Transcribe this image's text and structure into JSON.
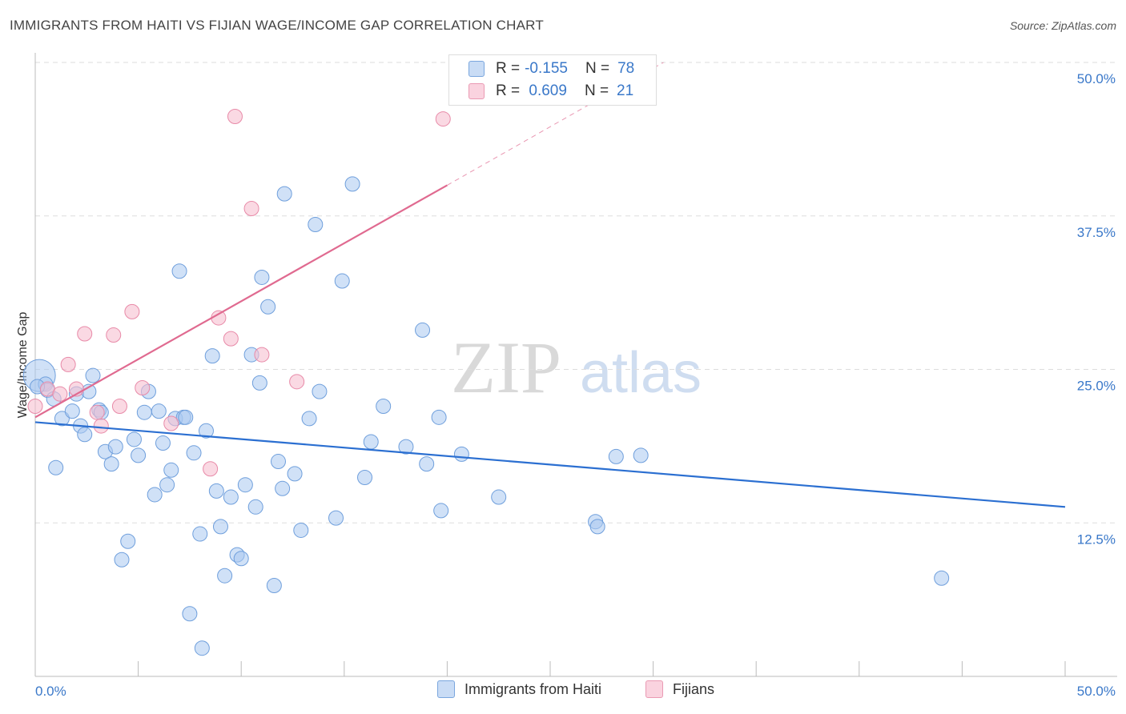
{
  "header": {
    "title": "IMMIGRANTS FROM HAITI VS FIJIAN WAGE/INCOME GAP CORRELATION CHART",
    "source": "Source: ZipAtlas.com"
  },
  "watermark": {
    "zip": "ZIP",
    "atlas": "atlas"
  },
  "legend_top": {
    "rows": [
      {
        "r_label": "R =",
        "r_value": "-0.155",
        "n_label": "N =",
        "n_value": "78",
        "color": "#a9c8f0"
      },
      {
        "r_label": "R =",
        "r_value": " 0.609",
        "n_label": "N =",
        "n_value": "21",
        "color": "#f7b8cb"
      }
    ]
  },
  "legend_bottom": {
    "items": [
      {
        "label": "Immigrants from Haiti",
        "color": "#a9c8f0"
      },
      {
        "label": "Fijians",
        "color": "#f7b8cb"
      }
    ]
  },
  "colors": {
    "blue_fill": "#a9c8f0",
    "blue_stroke": "#6f9fdc",
    "blue_line": "#2b6fd1",
    "pink_fill": "#f7c0d0",
    "pink_stroke": "#e88aa8",
    "pink_line": "#e06a90",
    "tick_label": "#3a78c9",
    "grid": "#dddddd"
  },
  "chart_data": {
    "type": "scatter",
    "title": "IMMIGRANTS FROM HAITI VS FIJIAN WAGE/INCOME GAP CORRELATION CHART",
    "xlabel": "",
    "ylabel": "Wage/Income Gap",
    "xlim": [
      0,
      50
    ],
    "ylim": [
      0,
      50
    ],
    "x_tick_labels": [
      "0.0%",
      "50.0%"
    ],
    "y_tick_labels": [
      {
        "value": 12.5,
        "label": "12.5%"
      },
      {
        "value": 25.0,
        "label": "25.0%"
      },
      {
        "value": 37.5,
        "label": "37.5%"
      },
      {
        "value": 50.0,
        "label": "50.0%"
      }
    ],
    "grid": true,
    "legend_position": "top-center",
    "series": [
      {
        "name": "Immigrants from Haiti",
        "r": -0.155,
        "n": 78,
        "trend": {
          "x": [
            0,
            50
          ],
          "y": [
            20.7,
            13.8
          ]
        },
        "points": [
          [
            0.2,
            24.5
          ],
          [
            0.5,
            23.8
          ],
          [
            0.6,
            23.3
          ],
          [
            0.9,
            22.6
          ],
          [
            1.0,
            17.0
          ],
          [
            1.3,
            21.0
          ],
          [
            1.8,
            21.6
          ],
          [
            2.0,
            23.0
          ],
          [
            2.2,
            20.4
          ],
          [
            2.4,
            19.7
          ],
          [
            2.6,
            23.2
          ],
          [
            2.8,
            24.5
          ],
          [
            3.1,
            21.7
          ],
          [
            3.2,
            21.5
          ],
          [
            3.4,
            18.3
          ],
          [
            3.7,
            17.3
          ],
          [
            3.9,
            18.7
          ],
          [
            4.2,
            9.5
          ],
          [
            4.5,
            11.0
          ],
          [
            4.8,
            19.3
          ],
          [
            5.0,
            18.0
          ],
          [
            5.3,
            21.5
          ],
          [
            5.5,
            23.2
          ],
          [
            5.8,
            14.8
          ],
          [
            6.0,
            21.6
          ],
          [
            6.2,
            19.0
          ],
          [
            6.4,
            15.6
          ],
          [
            6.6,
            16.8
          ],
          [
            6.8,
            21.0
          ],
          [
            7.0,
            33.0
          ],
          [
            7.2,
            21.1
          ],
          [
            7.5,
            5.1
          ],
          [
            7.7,
            18.2
          ],
          [
            8.0,
            11.6
          ],
          [
            8.1,
            2.3
          ],
          [
            8.3,
            20.0
          ],
          [
            8.6,
            26.1
          ],
          [
            8.8,
            15.1
          ],
          [
            9.0,
            12.2
          ],
          [
            9.2,
            8.2
          ],
          [
            9.5,
            14.6
          ],
          [
            9.8,
            9.9
          ],
          [
            10.0,
            9.6
          ],
          [
            10.2,
            15.6
          ],
          [
            10.5,
            26.2
          ],
          [
            10.7,
            13.8
          ],
          [
            10.9,
            23.9
          ],
          [
            11.0,
            32.5
          ],
          [
            11.3,
            30.1
          ],
          [
            11.6,
            7.4
          ],
          [
            11.8,
            17.5
          ],
          [
            12.0,
            15.3
          ],
          [
            12.1,
            39.3
          ],
          [
            12.6,
            16.5
          ],
          [
            12.9,
            11.9
          ],
          [
            13.3,
            21.0
          ],
          [
            13.6,
            36.8
          ],
          [
            13.8,
            23.2
          ],
          [
            14.6,
            12.9
          ],
          [
            14.9,
            32.2
          ],
          [
            15.4,
            40.1
          ],
          [
            16.0,
            16.2
          ],
          [
            16.3,
            19.1
          ],
          [
            16.9,
            22.0
          ],
          [
            18.0,
            18.7
          ],
          [
            18.8,
            28.2
          ],
          [
            19.0,
            17.3
          ],
          [
            19.6,
            21.1
          ],
          [
            19.7,
            13.5
          ],
          [
            20.7,
            18.1
          ],
          [
            22.5,
            14.6
          ],
          [
            27.2,
            12.6
          ],
          [
            27.3,
            12.2
          ],
          [
            28.2,
            17.9
          ],
          [
            29.4,
            18.0
          ],
          [
            44.0,
            8.0
          ],
          [
            0.1,
            23.6
          ],
          [
            7.3,
            21.1
          ]
        ]
      },
      {
        "name": "Fijians",
        "r": 0.609,
        "n": 21,
        "trend": {
          "x": [
            0,
            20
          ],
          "y": [
            21.1,
            40.0
          ]
        },
        "trend_extension": {
          "x": [
            20,
            30.5
          ],
          "y": [
            40.0,
            50.0
          ]
        },
        "points": [
          [
            0.0,
            22.0
          ],
          [
            0.6,
            23.4
          ],
          [
            1.2,
            23.0
          ],
          [
            1.6,
            25.4
          ],
          [
            2.0,
            23.4
          ],
          [
            2.4,
            27.9
          ],
          [
            3.0,
            21.5
          ],
          [
            3.2,
            20.4
          ],
          [
            3.8,
            27.8
          ],
          [
            4.1,
            22.0
          ],
          [
            4.7,
            29.7
          ],
          [
            5.2,
            23.5
          ],
          [
            6.6,
            20.6
          ],
          [
            8.5,
            16.9
          ],
          [
            8.9,
            29.2
          ],
          [
            9.5,
            27.5
          ],
          [
            9.7,
            45.6
          ],
          [
            10.5,
            38.1
          ],
          [
            11.0,
            26.2
          ],
          [
            12.7,
            24.0
          ],
          [
            19.8,
            45.4
          ]
        ]
      }
    ]
  }
}
